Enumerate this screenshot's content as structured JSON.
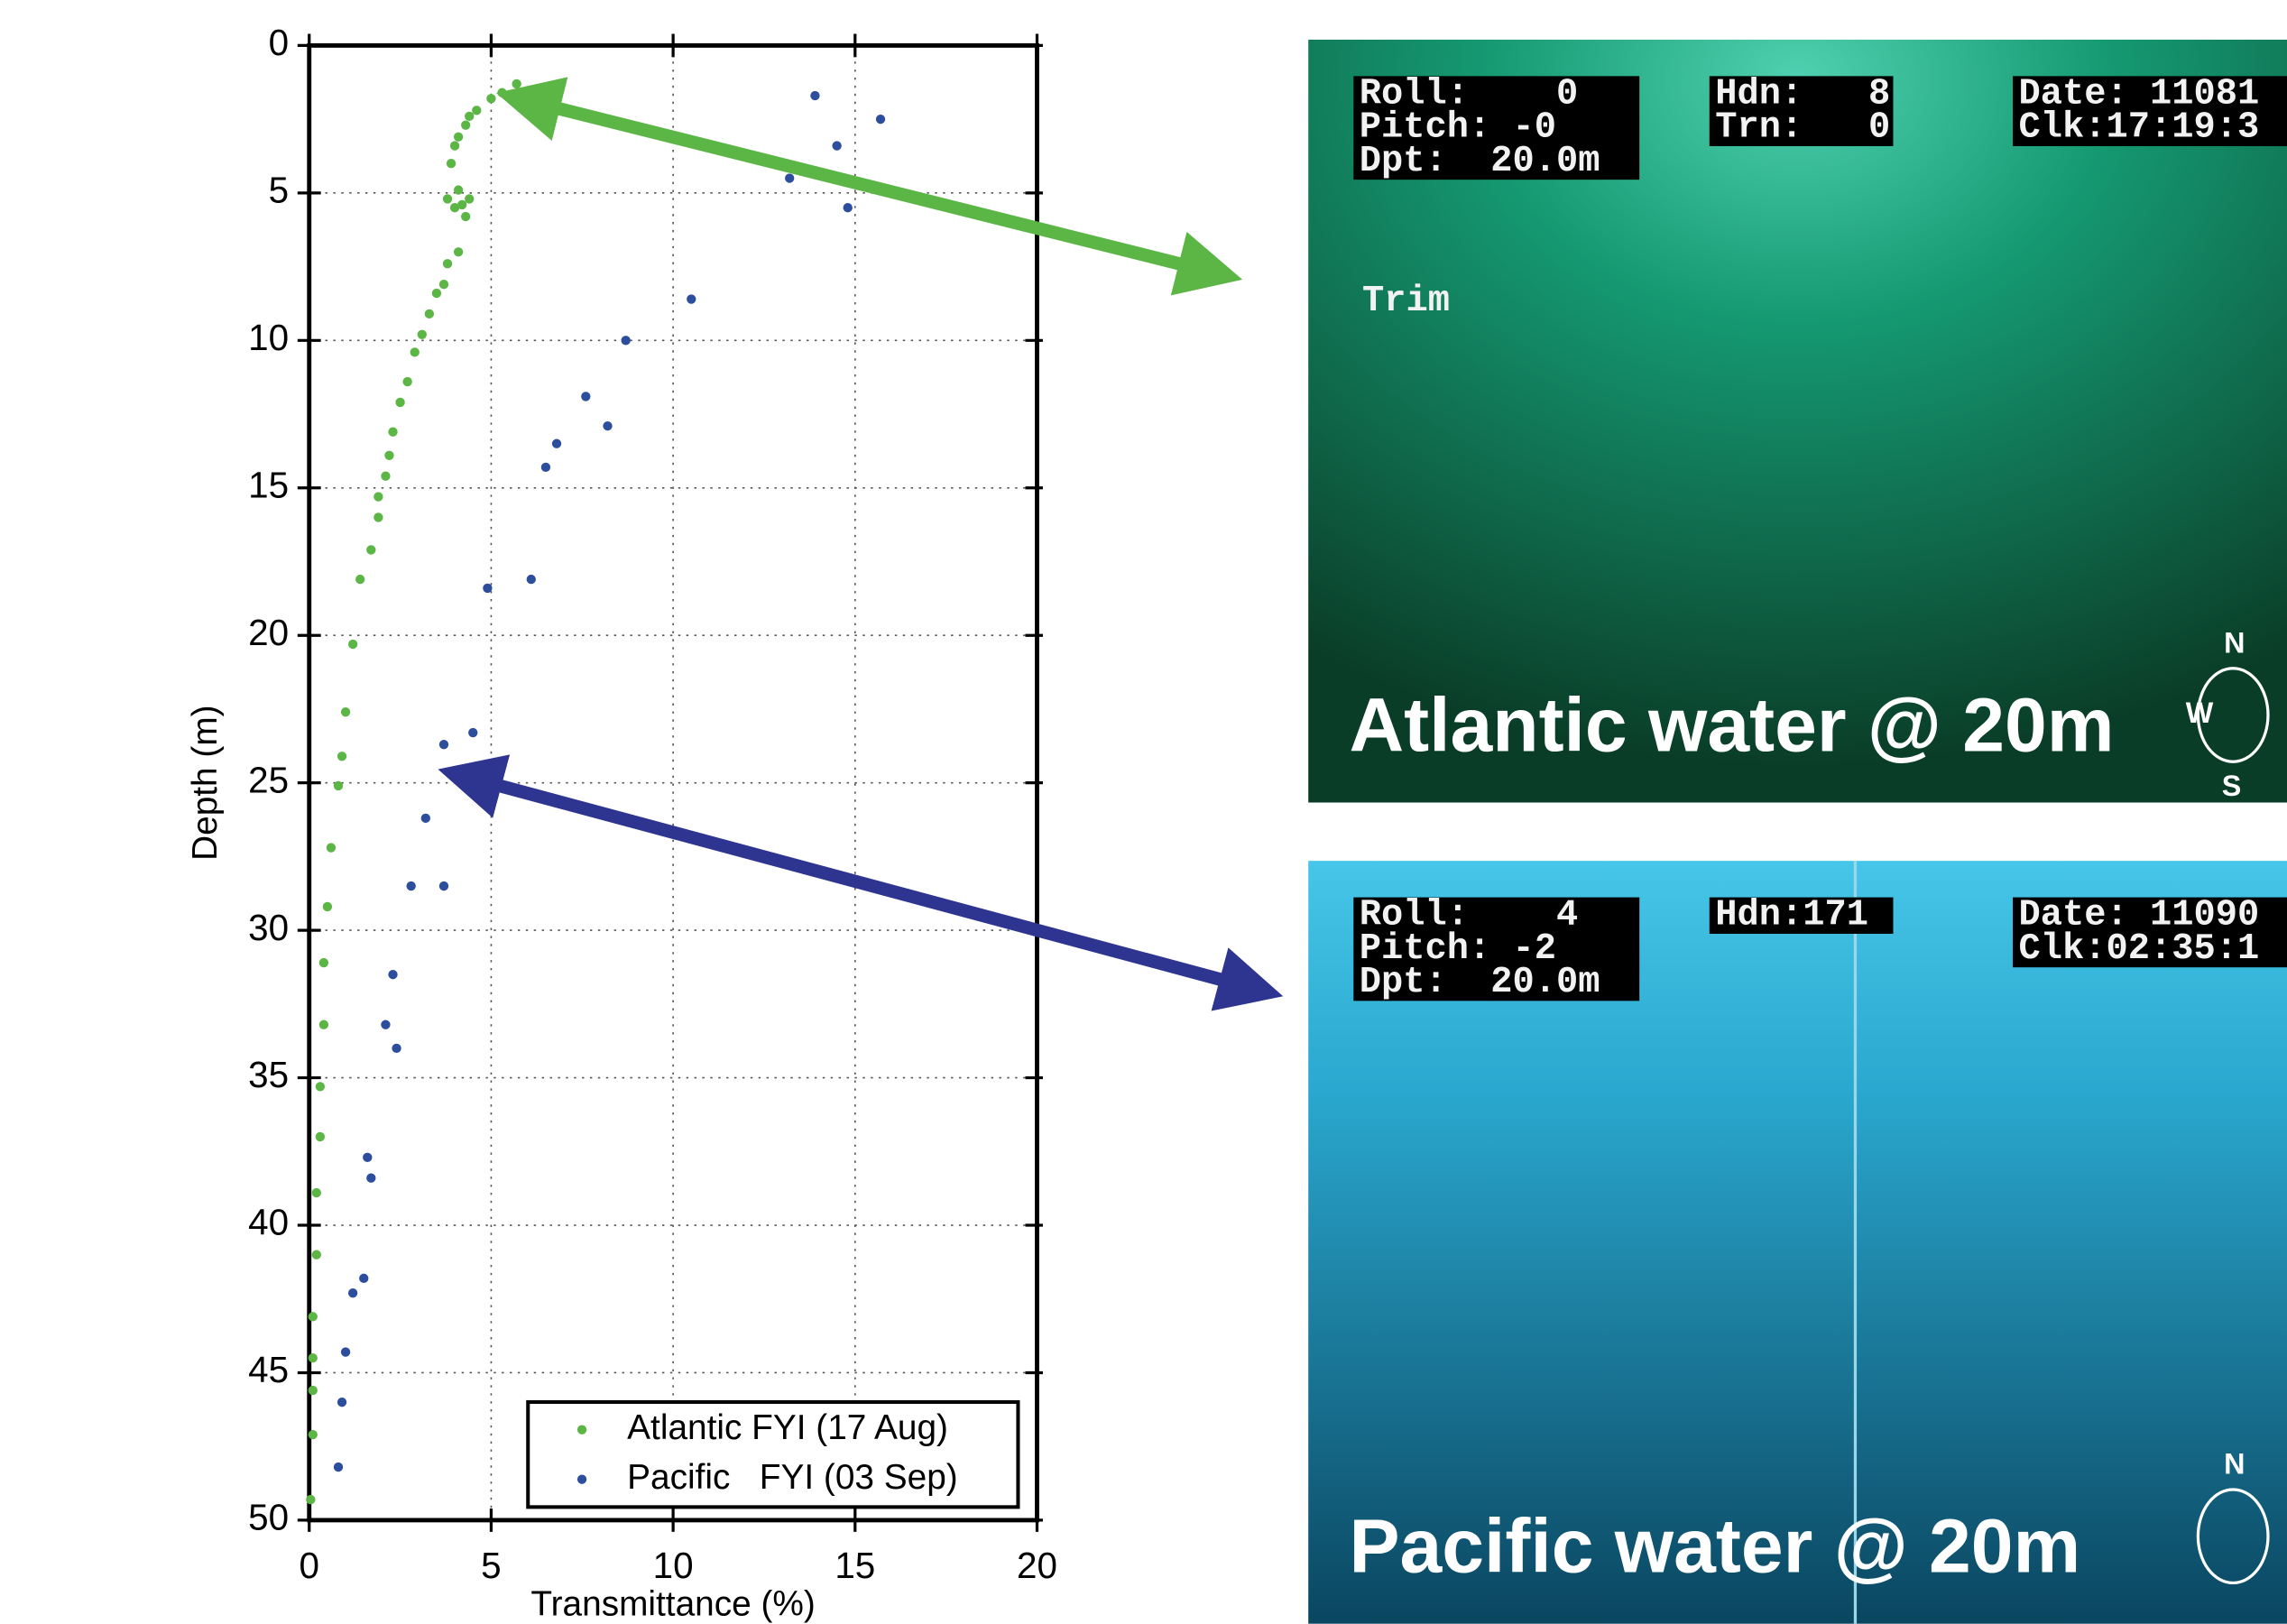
{
  "chart_data": {
    "type": "scatter",
    "xlabel": "Transmittance (%)",
    "ylabel": "Depth (m)",
    "xlim": [
      0,
      20
    ],
    "ylim": [
      50,
      0
    ],
    "xticks": [
      0,
      5,
      10,
      15,
      20
    ],
    "yticks": [
      0,
      5,
      10,
      15,
      20,
      25,
      30,
      35,
      40,
      45,
      50
    ],
    "grid": true,
    "legend": "lower right",
    "series": [
      {
        "name": "Atlantic FYI (17 Aug)",
        "color": "#5cb646",
        "x": [
          5.7,
          5.3,
          5.0,
          4.6,
          4.4,
          4.3,
          4.1,
          4.0,
          3.9,
          3.8,
          4.1,
          4.2,
          4.4,
          4.3,
          4.0,
          4.1,
          3.8,
          3.7,
          3.5,
          3.3,
          3.1,
          2.9,
          2.7,
          2.5,
          2.3,
          2.2,
          2.1,
          1.9,
          1.9,
          1.7,
          1.4,
          1.2,
          1.0,
          0.9,
          0.8,
          0.6,
          0.5,
          0.4,
          0.4,
          0.3,
          0.3,
          0.2,
          0.2,
          0.1,
          0.1,
          0.1,
          0.1,
          0.04
        ],
        "values": [
          1.3,
          1.6,
          1.8,
          2.2,
          2.4,
          2.7,
          3.1,
          3.4,
          4.0,
          5.2,
          4.9,
          5.4,
          5.2,
          5.8,
          5.5,
          7.0,
          7.4,
          8.1,
          8.4,
          9.1,
          9.8,
          10.4,
          11.4,
          12.1,
          13.1,
          13.9,
          14.6,
          15.3,
          16.0,
          17.1,
          18.1,
          20.3,
          22.6,
          24.1,
          25.1,
          27.2,
          29.2,
          31.1,
          33.2,
          35.3,
          37.0,
          38.9,
          41.0,
          43.1,
          44.5,
          45.6,
          47.1,
          49.3
        ]
      },
      {
        "name": "Pacific   FYI (03 Sep)",
        "color": "#2d4e9c",
        "x": [
          13.9,
          15.7,
          14.5,
          13.2,
          14.8,
          10.5,
          8.7,
          7.6,
          8.2,
          6.8,
          6.5,
          6.1,
          4.9,
          4.5,
          3.7,
          3.2,
          2.8,
          3.7,
          2.3,
          2.1,
          2.4,
          1.6,
          1.7,
          1.5,
          1.2,
          1.0,
          0.9,
          0.8
        ],
        "values": [
          1.7,
          2.5,
          3.4,
          4.5,
          5.5,
          8.6,
          10.0,
          11.9,
          12.9,
          13.5,
          14.3,
          18.1,
          18.4,
          23.3,
          23.7,
          26.2,
          28.5,
          28.5,
          31.5,
          33.2,
          34.0,
          37.7,
          38.4,
          41.8,
          42.3,
          44.3,
          46.0,
          48.2
        ]
      }
    ]
  },
  "panels": [
    {
      "hud_left": [
        "Roll:    0",
        "Pitch: -0",
        "Dpt:  20.0m"
      ],
      "hud_mid": [
        "Hdn:   8",
        "Trn:   0"
      ],
      "hud_right": [
        "Date: 11081",
        "Clk:17:19:3"
      ],
      "label": "Trim",
      "caption": "Atlantic water @ 20m",
      "compass": [
        "N",
        "W",
        "S"
      ]
    },
    {
      "hud_left": [
        "Roll:    4",
        "Pitch: -2",
        "Dpt:  20.0m"
      ],
      "hud_mid": [
        "Hdn:171"
      ],
      "hud_right": [
        "Date: 11090",
        "Clk:02:35:1"
      ],
      "caption": "Pacific water @ 20m",
      "compass": [
        "N"
      ]
    }
  ]
}
